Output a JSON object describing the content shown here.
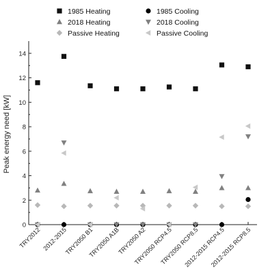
{
  "chart_data": {
    "type": "scatter",
    "title": "",
    "xlabel": "",
    "ylabel": "Peak energy need [kW]",
    "ylim": [
      0,
      15
    ],
    "yticks": [
      0,
      2,
      4,
      6,
      8,
      10,
      12,
      14
    ],
    "grid": false,
    "legend_position": "top",
    "categories": [
      "TRY2012",
      "2012-2015",
      "TRY2050 B1",
      "TRY2050 A1B",
      "TRY2050 A2",
      "TRY2050 RCP4.5",
      "TRY2050 RCP8.5",
      "2012-2015 RCP4.5",
      "2012-2015 RCP8.5"
    ],
    "series": [
      {
        "name": "1985 Heating",
        "marker": "square",
        "color": "#111111",
        "values": [
          11.6,
          13.75,
          11.35,
          11.1,
          11.1,
          11.25,
          11.1,
          13.05,
          12.9
        ]
      },
      {
        "name": "1985 Cooling",
        "marker": "circle",
        "color": "#000000",
        "values": [
          0,
          0,
          0,
          0,
          0,
          0,
          0,
          0,
          2.05
        ]
      },
      {
        "name": "2018 Heating",
        "marker": "triangle-up",
        "color": "#808080",
        "values": [
          2.8,
          3.35,
          2.75,
          2.7,
          2.7,
          2.75,
          2.7,
          3.0,
          3.0
        ]
      },
      {
        "name": "2018 Cooling",
        "marker": "triangle-down",
        "color": "#808080",
        "values": [
          0,
          6.7,
          0,
          0,
          0,
          0,
          0,
          3.95,
          7.2
        ]
      },
      {
        "name": "Passive Heating",
        "marker": "diamond",
        "color": "#b8b8b8",
        "values": [
          1.6,
          1.5,
          1.55,
          1.55,
          1.55,
          1.55,
          1.55,
          1.5,
          1.5
        ]
      },
      {
        "name": "Passive Cooling",
        "marker": "triangle-left",
        "color": "#c8c8c8",
        "values": [
          0,
          5.85,
          0,
          2.2,
          1.3,
          0,
          3.05,
          7.15,
          8.05
        ]
      }
    ]
  }
}
